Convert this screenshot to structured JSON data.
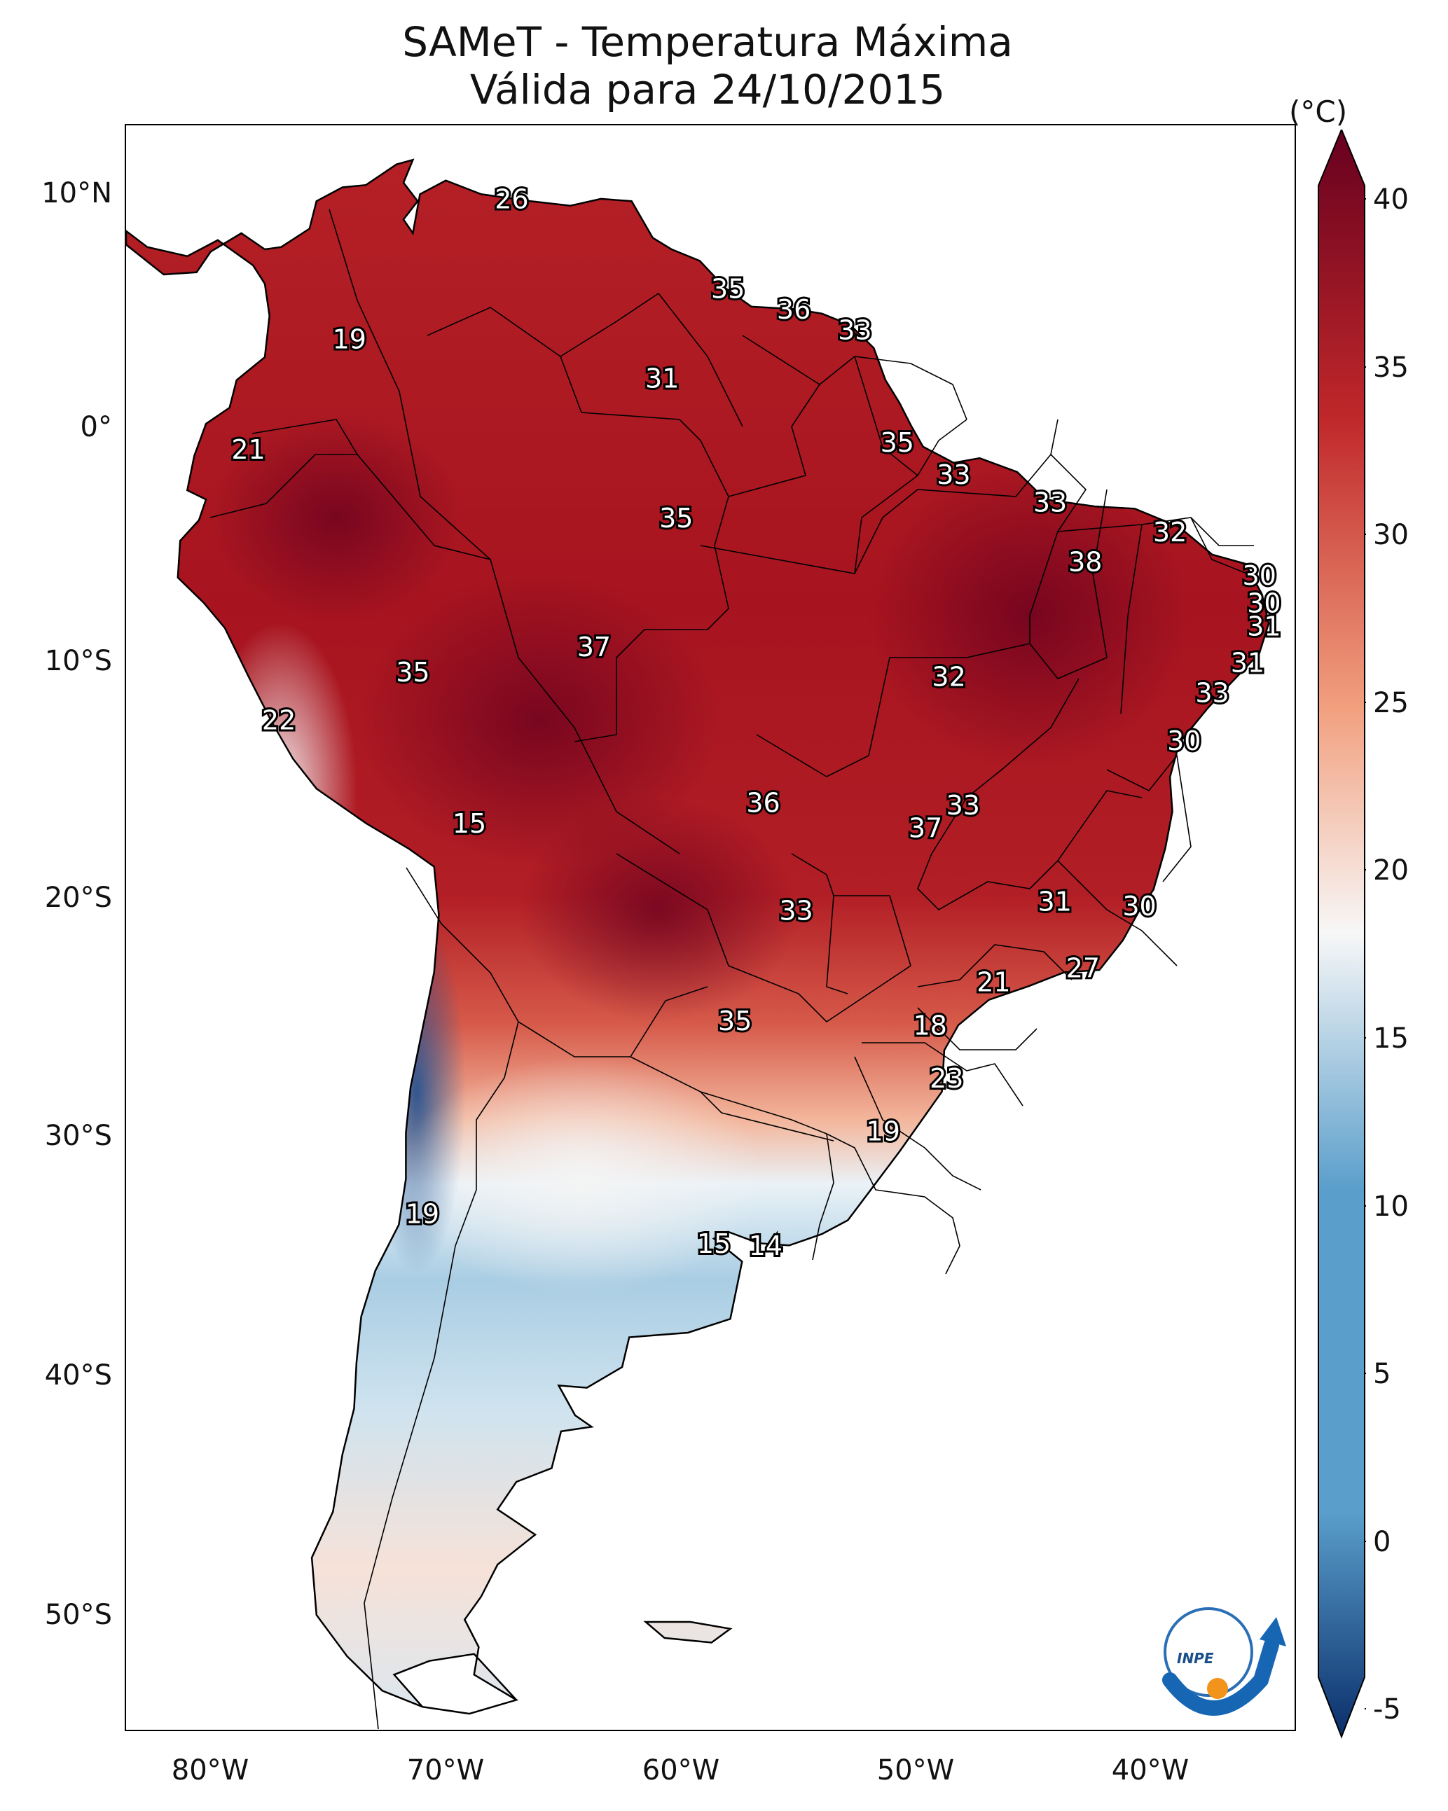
{
  "header": {
    "title_line1": "SAMeT - Temperatura Máxima",
    "title_line2": "Válida para 24/10/2015"
  },
  "axes": {
    "lat_ticks": [
      "10°N",
      "0°",
      "10°S",
      "20°S",
      "30°S",
      "40°S",
      "50°S"
    ],
    "lon_ticks": [
      "80°W",
      "70°W",
      "60°W",
      "50°W",
      "40°W"
    ]
  },
  "colorbar": {
    "unit": "(°C)",
    "ticks": [
      "40",
      "35",
      "30",
      "25",
      "20",
      "15",
      "10",
      "5",
      "0",
      "-5"
    ],
    "range": [
      -5,
      40
    ],
    "colors": {
      "cold": "#0a2f6b",
      "mid_blue": "#5a9ecb",
      "white": "#f7f7f7",
      "salmon": "#f2a07f",
      "red": "#c0282a",
      "dark_red": "#67001f"
    }
  },
  "logo": {
    "text": "INPE"
  },
  "labels": [
    {
      "text": "26",
      "lon": -67.0,
      "lat": 10.6
    },
    {
      "text": "35",
      "lon": -57.8,
      "lat": 6.7
    },
    {
      "text": "36",
      "lon": -55.0,
      "lat": 5.8
    },
    {
      "text": "33",
      "lon": -52.4,
      "lat": 4.9
    },
    {
      "text": "19",
      "lon": -73.9,
      "lat": 4.5
    },
    {
      "text": "31",
      "lon": -60.6,
      "lat": 2.8
    },
    {
      "text": "21",
      "lon": -78.2,
      "lat": -0.3
    },
    {
      "text": "35",
      "lon": -50.6,
      "lat": 0.0
    },
    {
      "text": "33",
      "lon": -48.2,
      "lat": -1.4
    },
    {
      "text": "33",
      "lon": -44.1,
      "lat": -2.6
    },
    {
      "text": "35",
      "lon": -60.0,
      "lat": -3.3
    },
    {
      "text": "32",
      "lon": -39.0,
      "lat": -3.9
    },
    {
      "text": "38",
      "lon": -42.6,
      "lat": -5.2
    },
    {
      "text": "30",
      "lon": -35.2,
      "lat": -5.8
    },
    {
      "text": "30",
      "lon": -35.0,
      "lat": -7.0
    },
    {
      "text": "31",
      "lon": -35.0,
      "lat": -8.0
    },
    {
      "text": "37",
      "lon": -63.5,
      "lat": -8.9
    },
    {
      "text": "35",
      "lon": -71.2,
      "lat": -10.0
    },
    {
      "text": "32",
      "lon": -48.4,
      "lat": -10.2
    },
    {
      "text": "31",
      "lon": -35.7,
      "lat": -9.6
    },
    {
      "text": "33",
      "lon": -37.2,
      "lat": -10.9
    },
    {
      "text": "22",
      "lon": -76.9,
      "lat": -12.1
    },
    {
      "text": "30",
      "lon": -38.4,
      "lat": -13.0
    },
    {
      "text": "36",
      "lon": -56.3,
      "lat": -15.7
    },
    {
      "text": "33",
      "lon": -47.8,
      "lat": -15.8
    },
    {
      "text": "37",
      "lon": -49.4,
      "lat": -16.8
    },
    {
      "text": "15",
      "lon": -68.8,
      "lat": -16.6
    },
    {
      "text": "31",
      "lon": -43.9,
      "lat": -20.0
    },
    {
      "text": "30",
      "lon": -40.3,
      "lat": -20.2
    },
    {
      "text": "33",
      "lon": -54.9,
      "lat": -20.4
    },
    {
      "text": "27",
      "lon": -42.7,
      "lat": -22.9
    },
    {
      "text": "21",
      "lon": -46.5,
      "lat": -23.5
    },
    {
      "text": "35",
      "lon": -57.5,
      "lat": -25.2
    },
    {
      "text": "18",
      "lon": -49.2,
      "lat": -25.4
    },
    {
      "text": "23",
      "lon": -48.5,
      "lat": -27.7
    },
    {
      "text": "19",
      "lon": -51.2,
      "lat": -30.0
    },
    {
      "text": "19",
      "lon": -70.8,
      "lat": -33.6
    },
    {
      "text": "15",
      "lon": -58.4,
      "lat": -34.9
    },
    {
      "text": "14",
      "lon": -56.2,
      "lat": -35.0
    }
  ]
}
